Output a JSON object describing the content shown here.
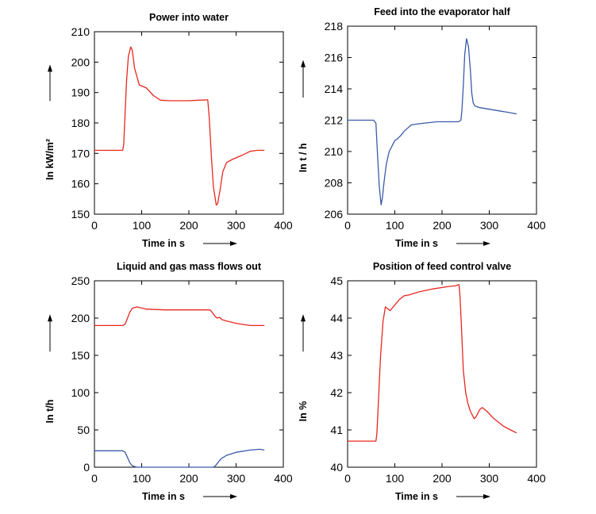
{
  "chart_data": [
    {
      "type": "line",
      "title": "Power into water",
      "xlabel": "Time in s",
      "ylabel": "In kW/m²",
      "xlim": [
        0,
        400
      ],
      "ylim": [
        150,
        210
      ],
      "xticks": [
        "0",
        "100",
        "200",
        "300",
        "400"
      ],
      "yticks": [
        "150",
        "160",
        "170",
        "180",
        "190",
        "200",
        "210"
      ],
      "grid": false,
      "series": [
        {
          "color": "#e8271f",
          "x": [
            0,
            60,
            62,
            68,
            72,
            77,
            80,
            85,
            95,
            110,
            125,
            140,
            160,
            200,
            220,
            240,
            243,
            248,
            252,
            258,
            261,
            266,
            272,
            280,
            292,
            310,
            330,
            345,
            360
          ],
          "y": [
            171,
            171,
            173,
            194,
            202,
            205,
            204,
            198,
            192.5,
            191.5,
            189,
            187.5,
            187.3,
            187.3,
            187.5,
            187.6,
            182,
            168,
            159,
            153,
            153.5,
            158,
            164,
            167,
            168,
            169.2,
            170.7,
            171,
            171
          ]
        }
      ]
    },
    {
      "type": "line",
      "title": "Feed into the evaporator half",
      "xlabel": "Time in s",
      "ylabel": "In t / h",
      "xlim": [
        0,
        400
      ],
      "ylim": [
        206,
        218
      ],
      "xticks": [
        "0",
        "100",
        "200",
        "300",
        "400"
      ],
      "yticks": [
        "206",
        "208",
        "210",
        "212",
        "214",
        "216",
        "218"
      ],
      "grid": false,
      "series": [
        {
          "color": "#3a5ba8",
          "x": [
            0,
            55,
            60,
            63,
            67,
            71,
            74,
            77,
            82,
            88,
            95,
            100,
            105,
            112,
            120,
            135,
            160,
            190,
            210,
            235,
            240,
            242,
            245,
            248,
            252,
            256,
            260,
            263,
            266,
            270,
            280,
            300,
            320,
            340,
            358
          ],
          "y": [
            212,
            212,
            211.8,
            210,
            207.8,
            206.6,
            207.1,
            208,
            209.2,
            210,
            210.4,
            210.7,
            210.8,
            211,
            211.3,
            211.7,
            211.8,
            211.9,
            211.9,
            211.9,
            212,
            212.6,
            214.2,
            216.2,
            217.2,
            216.7,
            215.2,
            213.7,
            213.1,
            212.9,
            212.8,
            212.7,
            212.6,
            212.5,
            212.4
          ]
        }
      ]
    },
    {
      "type": "line",
      "title": "Liquid and gas mass flows out",
      "xlabel": "Time in s",
      "ylabel": "In t/h",
      "xlim": [
        0,
        400
      ],
      "ylim": [
        0,
        250
      ],
      "xticks": [
        "0",
        "100",
        "200",
        "300",
        "400"
      ],
      "yticks": [
        "0",
        "50",
        "100",
        "150",
        "200",
        "250"
      ],
      "grid": false,
      "series": [
        {
          "color": "#e8271f",
          "x": [
            0,
            60,
            65,
            70,
            75,
            80,
            90,
            110,
            150,
            200,
            245,
            250,
            256,
            260,
            265,
            270,
            280,
            300,
            330,
            360
          ],
          "y": [
            190,
            190,
            192,
            200,
            208,
            213,
            215,
            212,
            211,
            211,
            211,
            207,
            202,
            200,
            201,
            198,
            196,
            193,
            190,
            190
          ]
        },
        {
          "color": "#3a5ba8",
          "x": [
            0,
            60,
            65,
            70,
            75,
            80,
            85,
            90,
            100,
            150,
            200,
            245,
            250,
            255,
            260,
            265,
            270,
            280,
            300,
            330,
            350,
            360
          ],
          "y": [
            22,
            22,
            20,
            13,
            6,
            2,
            1,
            0,
            0,
            0,
            0,
            0,
            0,
            1,
            5,
            9,
            12,
            16,
            20,
            23,
            24,
            23
          ]
        }
      ]
    },
    {
      "type": "line",
      "title": "Position of feed control valve",
      "xlabel": "Time in s",
      "ylabel": "In %",
      "xlim": [
        0,
        400
      ],
      "ylim": [
        40,
        45
      ],
      "xticks": [
        "0",
        "100",
        "200",
        "300",
        "400"
      ],
      "yticks": [
        "40",
        "41",
        "42",
        "43",
        "44",
        "45"
      ],
      "grid": false,
      "series": [
        {
          "color": "#e8271f",
          "x": [
            0,
            60,
            62,
            65,
            70,
            75,
            80,
            85,
            90,
            100,
            110,
            120,
            130,
            150,
            180,
            210,
            230,
            236,
            238,
            241,
            245,
            250,
            255,
            260,
            268,
            272,
            280,
            285,
            295,
            310,
            330,
            345,
            358
          ],
          "y": [
            40.7,
            40.7,
            40.9,
            41.7,
            43.0,
            43.9,
            44.3,
            44.25,
            44.2,
            44.35,
            44.5,
            44.6,
            44.62,
            44.7,
            44.78,
            44.84,
            44.87,
            44.9,
            44.6,
            43.8,
            42.6,
            42.0,
            41.7,
            41.5,
            41.3,
            41.35,
            41.55,
            41.6,
            41.5,
            41.3,
            41.1,
            41.0,
            40.92
          ]
        }
      ]
    }
  ]
}
